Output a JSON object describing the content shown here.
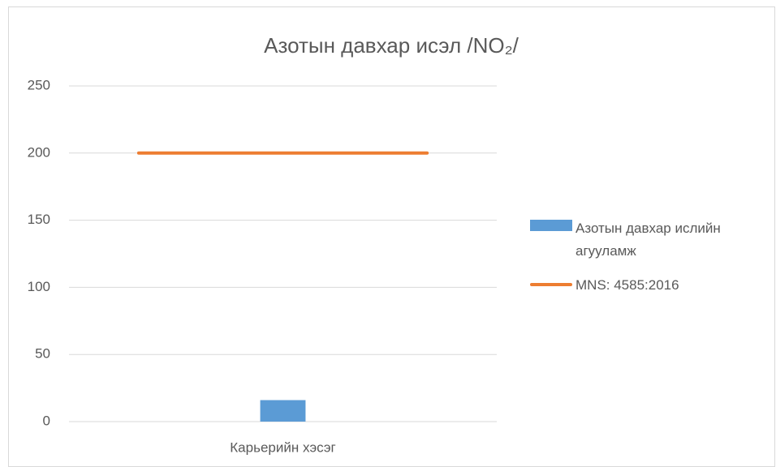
{
  "chart_data": {
    "type": "combo",
    "title": "Азотын давхар исэл /NO₂/",
    "categories": [
      "Карьерийн хэсэг"
    ],
    "series": [
      {
        "name": "Азотын давхар ислийн агууламж",
        "type": "bar",
        "color": "#5b9bd5",
        "values": [
          16
        ]
      },
      {
        "name": "MNS: 4585:2016",
        "type": "line",
        "color": "#ed7d31",
        "values": [
          200
        ]
      }
    ],
    "ylim": [
      0,
      250
    ],
    "yticks": [
      0,
      50,
      100,
      150,
      200,
      250
    ],
    "grid": true,
    "legend": "right"
  }
}
